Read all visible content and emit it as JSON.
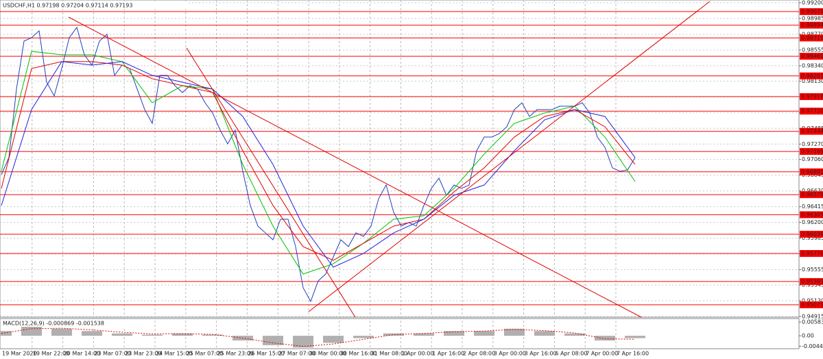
{
  "chart_data": [
    {
      "type": "line",
      "title": "USDCHF,H1 0.97198 0.97204 0.97114 0.97193",
      "time_labels": [
        "19 Mar 2020",
        "19 Mar 22:00",
        "20 Mar 14:00",
        "23 Mar 07:00",
        "23 Mar 23:00",
        "24 Mar 15:00",
        "25 Mar 07:00",
        "25 Mar 23:00",
        "26 Mar 15:00",
        "27 Mar 07:00",
        "30 Mar 00:00",
        "30 Mar 16:00",
        "31 Mar 08:00",
        "1 Apr 00:00",
        "1 Apr 16:00",
        "2 Apr 08:00",
        "3 Apr 00:00",
        "3 Apr 16:00",
        "6 Apr 08:00",
        "7 Apr 00:00",
        "7 Apr 16:00"
      ],
      "series": [
        {
          "color": "#1f3fbf",
          "values": [
            0.96852,
            0.97086,
            0.98021,
            0.98676,
            0.98723,
            0.98816,
            0.98115,
            0.97928,
            0.98302,
            0.98723,
            0.98863,
            0.98489,
            0.98349,
            0.98676,
            0.9877,
            0.98208,
            0.98349,
            0.98302,
            0.98021,
            0.97741,
            0.97553,
            0.98208,
            0.98208,
            0.98068,
            0.97974,
            0.98068,
            0.98021,
            0.97834,
            0.97694,
            0.9746,
            0.97273,
            0.9746,
            0.96899,
            0.96431,
            0.9615,
            0.96057,
            0.95963,
            0.96244,
            0.96244,
            0.9587,
            0.95308,
            0.95121,
            0.95402,
            0.95495,
            0.95729,
            0.95963,
            0.9587,
            0.96057,
            0.9601,
            0.9615,
            0.96524,
            0.96711,
            0.96337,
            0.9615,
            0.96197,
            0.9615,
            0.96431,
            0.96665,
            0.96805,
            0.96571,
            0.96711,
            0.96665,
            0.96711,
            0.97179,
            0.97366,
            0.97366,
            0.97413,
            0.97507,
            0.97741,
            0.97834,
            0.97647,
            0.97741,
            0.97741,
            0.97741,
            0.97787,
            0.97787,
            0.97787,
            0.97834,
            0.97694,
            0.97366,
            0.97226,
            0.96945,
            0.96899,
            0.96917,
            0.97086
          ]
        },
        {
          "color": "#00c000",
          "values": [
            0.96899,
            0.98536,
            0.98489,
            0.98489,
            0.98396,
            0.97834,
            0.98068,
            0.98021,
            0.96992,
            0.9615,
            0.95495,
            0.95636,
            0.95916,
            0.96244,
            0.96291,
            0.96665,
            0.97133,
            0.97553,
            0.97694,
            0.97787,
            0.97366,
            0.96758
          ]
        },
        {
          "color": "#e00000",
          "values": [
            0.96665,
            0.98302,
            0.98396,
            0.98396,
            0.98349,
            0.98162,
            0.98068,
            0.97974,
            0.97179,
            0.96431,
            0.9587,
            0.95683,
            0.95916,
            0.9615,
            0.96244,
            0.96618,
            0.96945,
            0.97366,
            0.97647,
            0.97741,
            0.97507,
            0.96992
          ]
        },
        {
          "color": "#2020e0",
          "values": [
            0.96431,
            0.97741,
            0.98396,
            0.98349,
            0.98396,
            0.98208,
            0.98115,
            0.98021,
            0.97647,
            0.96992,
            0.9615,
            0.95589,
            0.95776,
            0.96057,
            0.96244,
            0.96571,
            0.96711,
            0.97179,
            0.976,
            0.97741,
            0.97647,
            0.97086
          ]
        }
      ],
      "ylim": [
        0.94915,
        0.992
      ],
      "yticks": [
        {
          "value": 0.992,
          "label": "0.99200"
        },
        0.98985,
        {
          "value": 0.9877,
          "label": "0.98770"
        },
        0.98555,
        {
          "value": 0.9834,
          "label": "0.98340"
        },
        {
          "value": 0.9813,
          "label": "0.98130"
        },
        0.97915,
        {
          "value": 0.977,
          "label": "0.97700"
        },
        0.97485,
        {
          "value": 0.9727,
          "label": "0.97270"
        },
        {
          "value": 0.9706,
          "label": "0.97060"
        },
        0.96845,
        {
          "value": 0.9663,
          "label": "0.96630"
        },
        0.96415,
        {
          "value": 0.962,
          "label": "0.96200"
        },
        0.95985,
        {
          "value": 0.9577,
          "label": "0.95770"
        },
        0.95555,
        0.95345,
        {
          "value": 0.9513,
          "label": "0.95130"
        },
        0.94915
      ],
      "levels": [
        0.99079,
        0.98894,
        0.98719,
        0.98469,
        0.98201,
        0.97918,
        {
          "value": 0.9772,
          "label": "0.97720"
        },
        0.97444,
        0.97169,
        0.96891,
        0.96579,
        0.96305,
        0.96039,
        0.95776,
        0.95393,
        0.95075
      ],
      "level_color": "#ff0000",
      "grid": true
    },
    {
      "type": "bar",
      "title": "MACD(12,26,9) -0.000869 -0.001538",
      "values": [
        0.002,
        0.004,
        0.003,
        0.002,
        0.001,
        0.0005,
        0.001,
        0.0005,
        -0.002,
        -0.004,
        -0.005,
        -0.003,
        -0.001,
        0.001,
        0.001,
        0.002,
        0.002,
        0.003,
        0.002,
        0.001,
        -0.002,
        -0.001
      ],
      "color": "#b0b0b0",
      "signal": {
        "color": "#e00000",
        "values": [
          0.001,
          0.003,
          0.0032,
          0.0025,
          0.0015,
          0.0008,
          0.0009,
          0.0006,
          -0.001,
          -0.003,
          -0.0045,
          -0.0035,
          -0.0015,
          0.0005,
          0.001,
          0.0017,
          0.002,
          0.0027,
          0.0022,
          0.0012,
          -0.0013,
          -0.0015
        ]
      },
      "ylim": [
        -0.0055,
        0.0073
      ],
      "yticks": [
        0.005832,
        {
          "value": 0,
          "label": "0.00"
        },
        -0.004461
      ]
    }
  ]
}
